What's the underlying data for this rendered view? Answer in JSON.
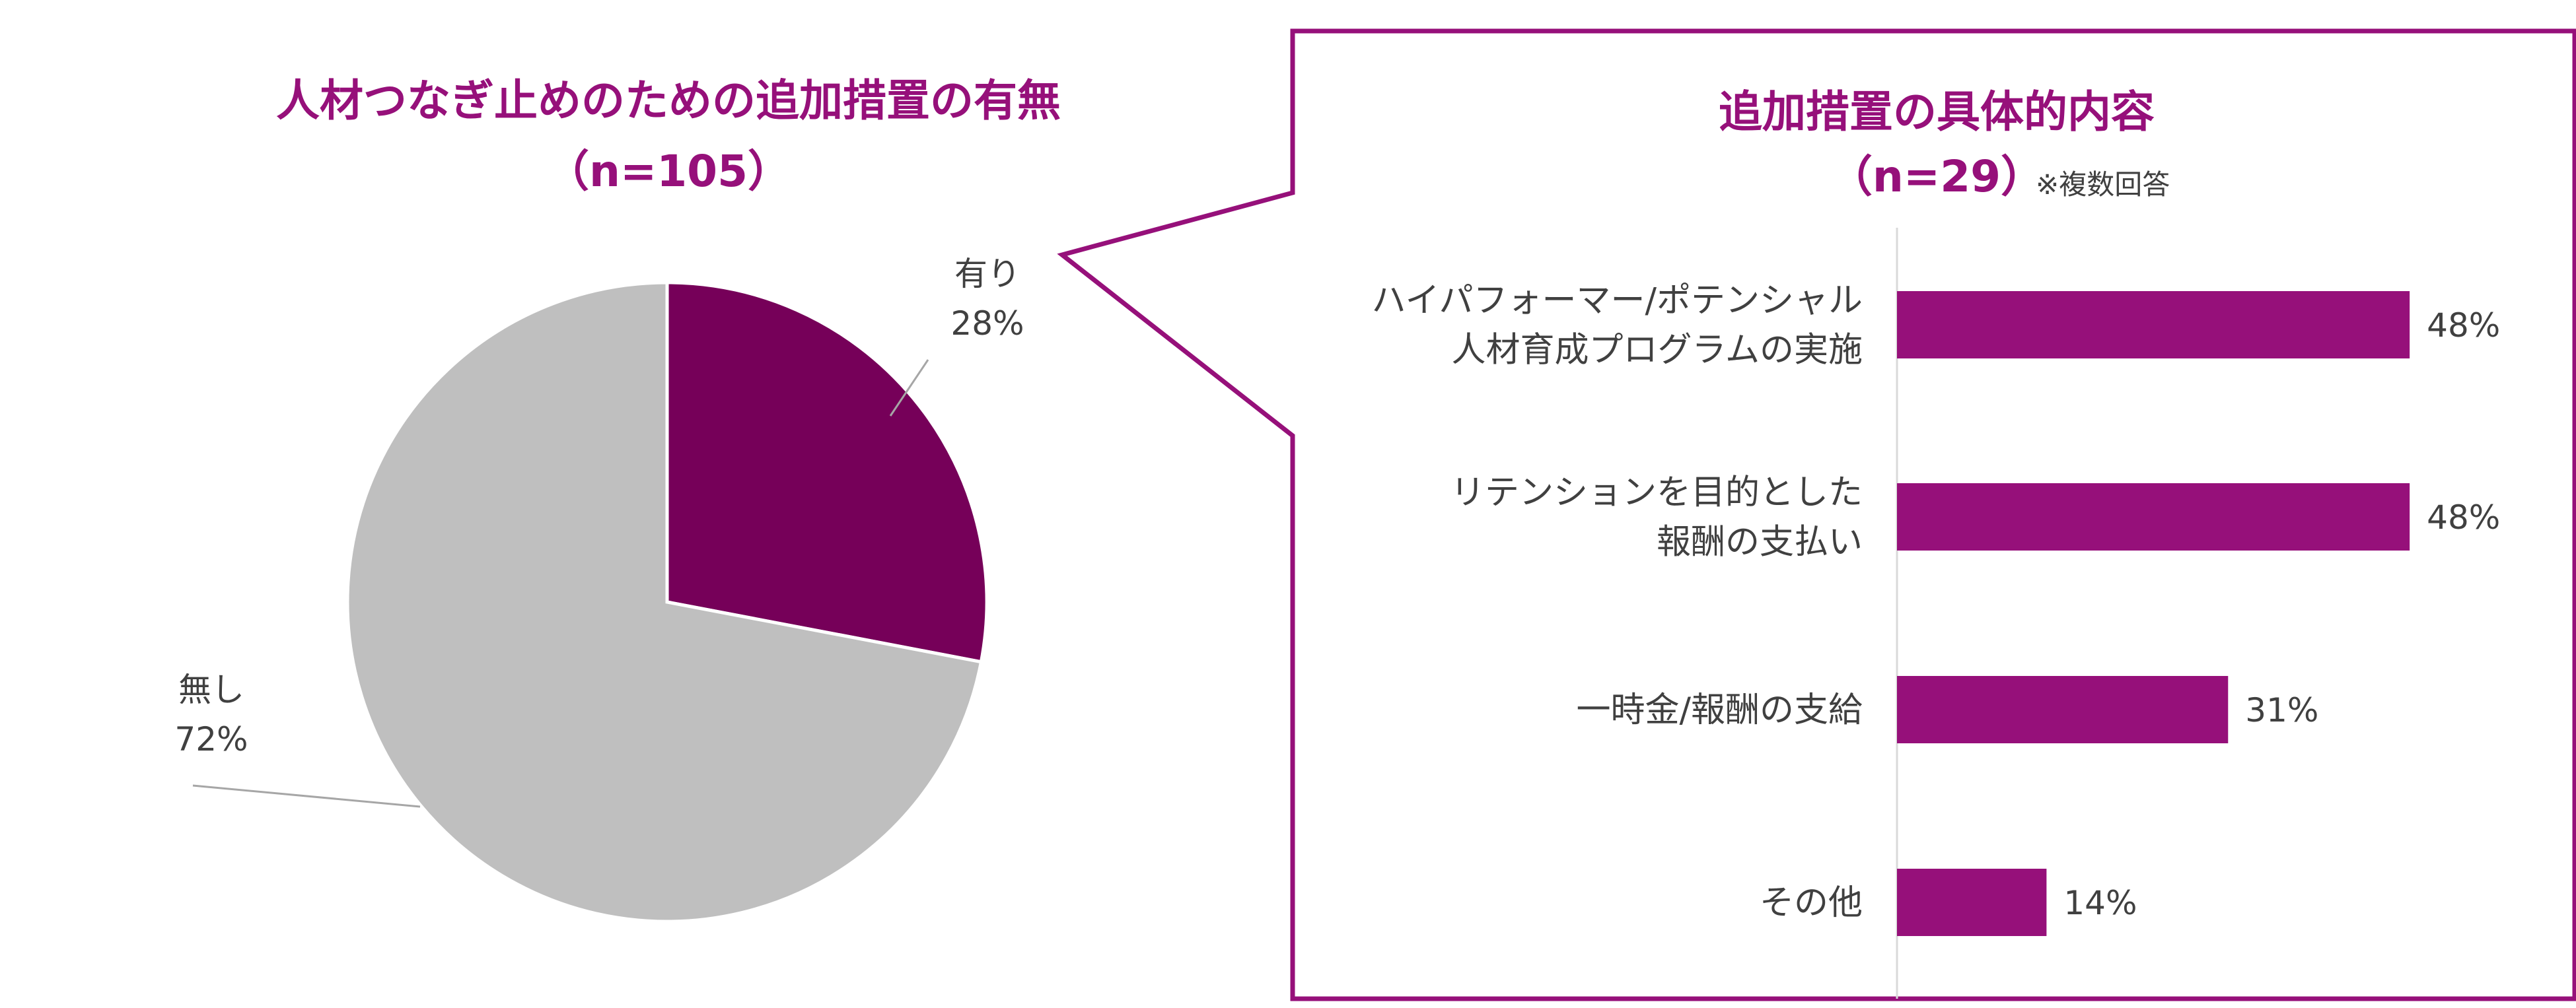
{
  "colors": {
    "accent": "#96107A",
    "pie_yes": "#760059",
    "pie_no": "#BFBFBF",
    "bar": "#96107A",
    "text": "#404040",
    "leader": "#A6A6A6",
    "axis": "#D9D9D9"
  },
  "left": {
    "title_line1": "人材つなぎ止めのための追加措置の有無",
    "title_line2": "（n=105）"
  },
  "right": {
    "title_line1": "追加措置の具体的内容",
    "title_line2": "（n=29）",
    "note": "※複数回答"
  },
  "chart_data": [
    {
      "type": "pie",
      "slices": [
        {
          "label_line1": "有り",
          "label_line2": "28%",
          "value": 28
        },
        {
          "label_line1": "無し",
          "label_line2": "72%",
          "value": 72
        }
      ]
    },
    {
      "type": "bar",
      "orientation": "horizontal",
      "categories": [
        [
          "ハイパフォーマー/ポテンシャル",
          "人材育成プログラムの実施"
        ],
        [
          "リテンションを目的とした",
          "報酬の支払い"
        ],
        [
          "一時金/報酬の支給"
        ],
        [
          "その他"
        ]
      ],
      "values": [
        48,
        48,
        31,
        14
      ],
      "value_labels": [
        "48%",
        "48%",
        "31%",
        "14%"
      ],
      "xlim": [
        0,
        100
      ]
    }
  ]
}
